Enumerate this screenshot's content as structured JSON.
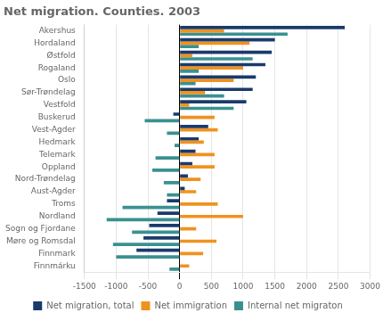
{
  "chart_data": {
    "type": "bar",
    "orientation": "horizontal",
    "title": "Net migration. Counties. 2003",
    "categories": [
      "Akershus",
      "Hordaland",
      "Østfold",
      "Rogaland",
      "Oslo",
      "Sør-Trøndelag",
      "Vestfold",
      "Buskerud",
      "Vest-Agder",
      "Hedmark",
      "Telemark",
      "Oppland",
      "Nord-Trøndelag",
      "Aust-Agder",
      "Troms",
      "Nordland",
      "Sogn og Fjordane",
      "Møre og Romsdal",
      "Finnmark",
      "Finnmárku"
    ],
    "series": [
      {
        "name": "Net migration, total",
        "color": "#1a3a6b",
        "values": [
          2600,
          1500,
          1450,
          1350,
          1200,
          1150,
          1050,
          -100,
          450,
          300,
          250,
          200,
          130,
          80,
          -200,
          -350,
          -480,
          -570,
          -680,
          0
        ]
      },
      {
        "name": "Net immigration",
        "color": "#f0921e",
        "values": [
          700,
          1100,
          200,
          1000,
          850,
          400,
          150,
          550,
          600,
          380,
          550,
          550,
          330,
          260,
          600,
          1000,
          260,
          580,
          370,
          150
        ]
      },
      {
        "name": "Internal net migraton",
        "color": "#3a9090",
        "values": [
          1700,
          300,
          1150,
          300,
          250,
          700,
          850,
          -550,
          -200,
          -80,
          -380,
          -430,
          -250,
          -200,
          -900,
          -1150,
          -750,
          -1050,
          -1000,
          -160
        ]
      }
    ],
    "xlim": [
      -1500,
      3000
    ],
    "xticks": [
      -1500,
      -1000,
      -500,
      0,
      500,
      1000,
      1500,
      2000,
      2500,
      3000
    ],
    "grid": true,
    "legend": "bottom"
  }
}
